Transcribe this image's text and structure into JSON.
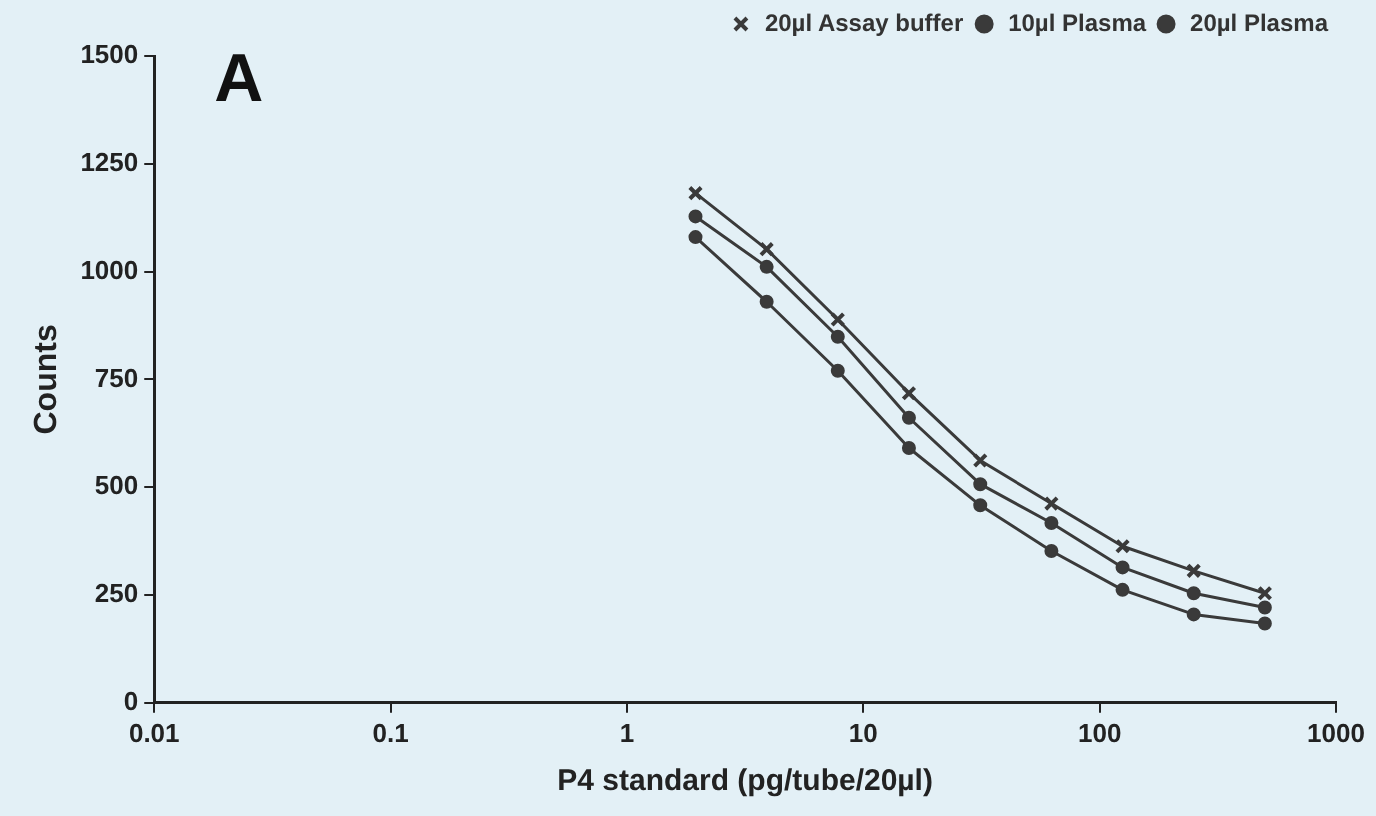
{
  "chart_data": {
    "type": "line",
    "xlabel": "P4 standard (pg/tube/20µl)",
    "ylabel": "Counts",
    "annotations": [
      "A"
    ],
    "log": "x",
    "xlim": [
      0.01,
      1000
    ],
    "xticks": [
      0.01,
      0.1,
      1,
      10,
      100,
      1000
    ],
    "ylim": [
      0,
      1500
    ],
    "yticks": [
      0,
      250,
      500,
      750,
      1000,
      1250,
      1500
    ],
    "grid": false,
    "legend": "top right",
    "marker": "circle",
    "line_style": "solid",
    "x": [
      1.95,
      3.9,
      7.8,
      15.6,
      31.25,
      62.5,
      125,
      250,
      500
    ],
    "series": [
      {
        "name": "20µl Assay buffer",
        "color": "#3a3a3a",
        "marker": "cross",
        "values": [
          1182,
          1052,
          889,
          718,
          562,
          462,
          363,
          306,
          254
        ]
      },
      {
        "name": "10µl Plasma",
        "color": "#3a3a3a",
        "values": [
          1128,
          1011,
          849,
          661,
          507,
          417,
          314,
          254,
          221
        ]
      },
      {
        "name": "20µl Plasma",
        "color": "#3a3a3a",
        "values": [
          1080,
          930,
          770,
          591,
          458,
          352,
          262,
          205,
          184
        ]
      }
    ]
  }
}
